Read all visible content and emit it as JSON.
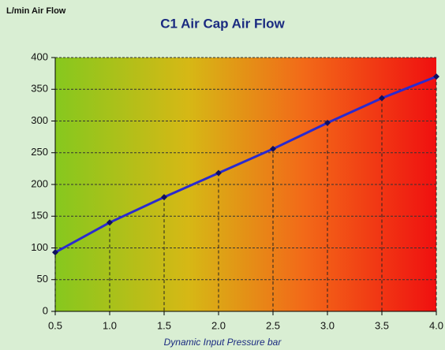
{
  "chart_data": {
    "type": "line",
    "title": "C1 Air Cap Air Flow",
    "y_label": "L/min Air Flow",
    "x_label": "Dynamic Input Pressure bar",
    "x": [
      0.5,
      1.0,
      1.5,
      2.0,
      2.5,
      3.0,
      3.5,
      4.0
    ],
    "series": [
      {
        "name": "C1 Air Cap Air Flow",
        "color": "#2a2ad0",
        "marker_color": "#101060",
        "values": [
          93,
          140,
          180,
          218,
          256,
          297,
          336,
          370
        ]
      }
    ],
    "xlim": [
      0.5,
      4.0
    ],
    "xticks": [
      0.5,
      {
        "value": 1,
        "label": "1.0"
      },
      1.5,
      {
        "value": 2,
        "label": "2.0"
      },
      2.5,
      {
        "value": 3,
        "label": "3.0"
      },
      3.5,
      {
        "value": 4,
        "label": "4.0"
      }
    ],
    "ylim": [
      0,
      400
    ],
    "yticks": [
      0,
      50,
      100,
      150,
      200,
      250,
      300,
      350,
      400
    ],
    "grid": true,
    "drop_lines": true
  }
}
